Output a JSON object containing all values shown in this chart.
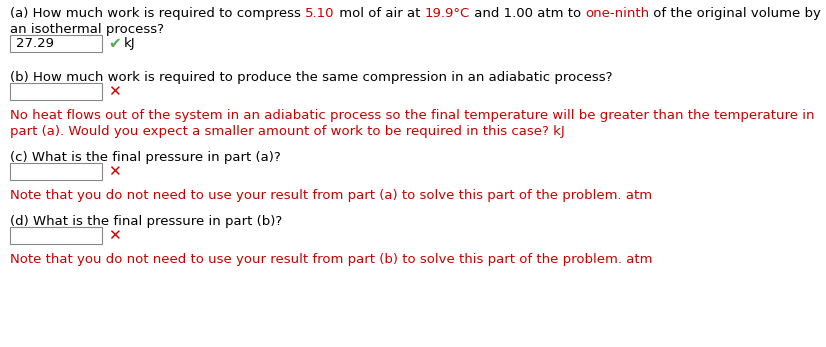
{
  "bg_color": "#ffffff",
  "black": "#000000",
  "red": "#cc0000",
  "green": "#4CAF50",
  "part_a": {
    "question_segments": [
      {
        "text": "(a) How much work is required to compress ",
        "color": "#000000"
      },
      {
        "text": "5.10",
        "color": "#cc0000"
      },
      {
        "text": " mol of air at ",
        "color": "#000000"
      },
      {
        "text": "19.9°C",
        "color": "#cc0000"
      },
      {
        "text": " and 1.00 atm to ",
        "color": "#000000"
      },
      {
        "text": "one-ninth",
        "color": "#cc0000"
      },
      {
        "text": " of the original volume by",
        "color": "#000000"
      }
    ],
    "question_line2": "an isothermal process?",
    "answer_value": "27.29",
    "unit": "kJ",
    "correct": true
  },
  "part_b": {
    "question": "(b) How much work is required to produce the same compression in an adiabatic process?",
    "unit": "kJ",
    "correct": false,
    "hint_line1": "No heat flows out of the system in an adiabatic process so the final temperature will be greater than the temperature in",
    "hint_line2": "part (a). Would you expect a smaller amount of work to be required in this case? kJ"
  },
  "part_c": {
    "question": "(c) What is the final pressure in part (a)?",
    "unit": "atm",
    "correct": false,
    "hint": "Note that you do not need to use your result from part (a) to solve this part of the problem. atm"
  },
  "part_d": {
    "question": "(d) What is the final pressure in part (b)?",
    "unit": "atm",
    "correct": false,
    "hint": "Note that you do not need to use your result from part (b) to solve this part of the problem. atm"
  }
}
